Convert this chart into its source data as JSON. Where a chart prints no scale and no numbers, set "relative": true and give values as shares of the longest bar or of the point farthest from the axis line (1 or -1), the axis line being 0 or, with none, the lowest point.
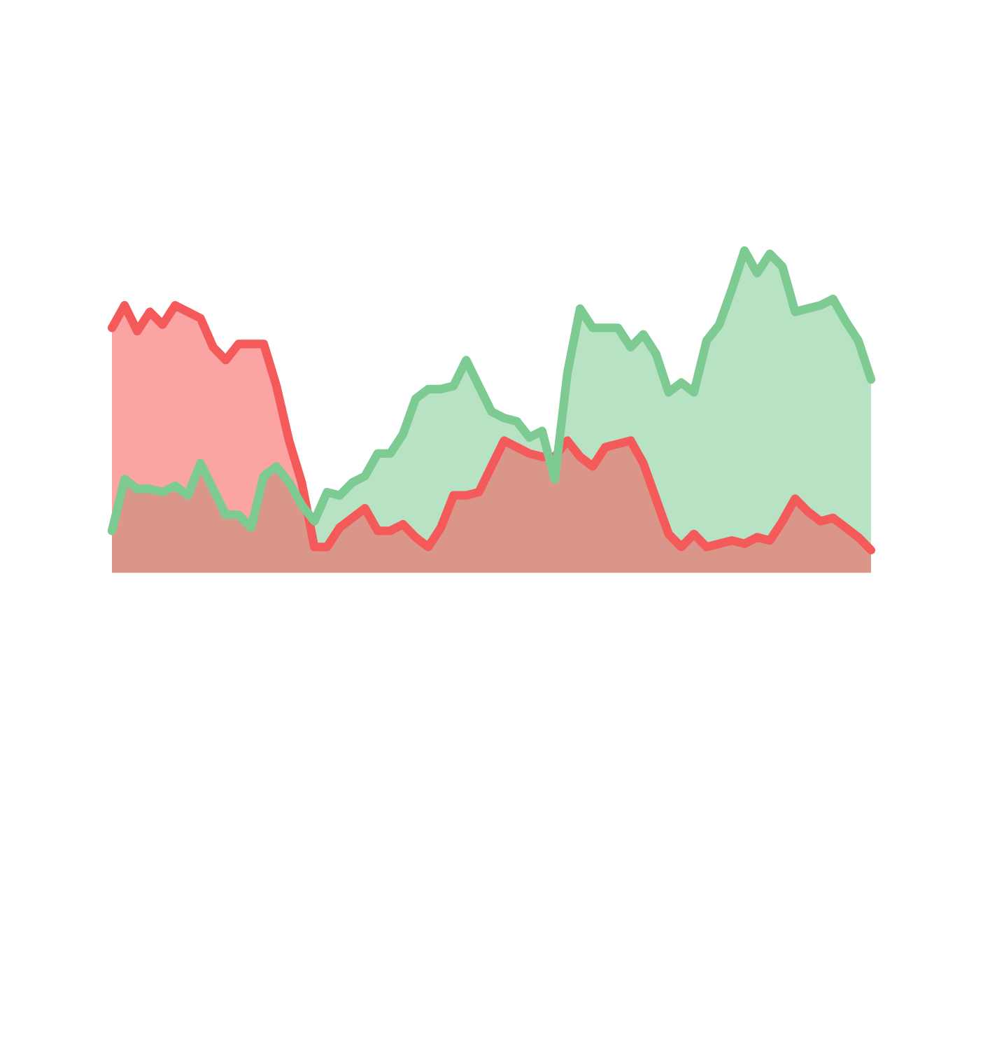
{
  "chart_data": {
    "type": "area",
    "relative": true,
    "categories": [
      null,
      null,
      null,
      null,
      null,
      null,
      null,
      null,
      null,
      null,
      null,
      null,
      null,
      null,
      null,
      null,
      null,
      null,
      null,
      null,
      null,
      null,
      null,
      null,
      null,
      null,
      null,
      null,
      null,
      null,
      null,
      null,
      null,
      null,
      null,
      null,
      null,
      null,
      null,
      null,
      null,
      null,
      null,
      null,
      null,
      null,
      null,
      null,
      null,
      null,
      null,
      null,
      null,
      null,
      null,
      null,
      null,
      null,
      null,
      null,
      null
    ],
    "series": [
      {
        "color": "#f55a5a",
        "values": [
          0.76,
          0.83,
          0.75,
          0.81,
          0.77,
          0.83,
          0.81,
          0.79,
          0.7,
          0.66,
          0.71,
          0.71,
          0.71,
          0.58,
          0.41,
          0.28,
          0.08,
          0.08,
          0.14,
          0.17,
          0.2,
          0.13,
          0.13,
          0.15,
          0.11,
          0.08,
          0.14,
          0.24,
          0.24,
          0.25,
          0.33,
          0.41,
          0.39,
          0.37,
          0.36,
          0.36,
          0.41,
          0.36,
          0.33,
          0.39,
          0.4,
          0.41,
          0.34,
          0.23,
          0.12,
          0.08,
          0.12,
          0.08,
          0.09,
          0.1,
          0.09,
          0.11,
          0.1,
          0.16,
          0.23,
          0.19,
          0.16,
          0.17,
          0.14,
          0.11,
          0.07
        ]
      },
      {
        "color": "#7dcb93",
        "values": [
          0.13,
          0.29,
          0.26,
          0.26,
          0.25,
          0.27,
          0.24,
          0.34,
          0.26,
          0.18,
          0.18,
          0.14,
          0.3,
          0.33,
          0.28,
          0.21,
          0.16,
          0.25,
          0.24,
          0.28,
          0.3,
          0.37,
          0.37,
          0.43,
          0.54,
          0.57,
          0.57,
          0.58,
          0.66,
          0.58,
          0.5,
          0.48,
          0.47,
          0.42,
          0.44,
          0.29,
          0.62,
          0.82,
          0.76,
          0.76,
          0.76,
          0.7,
          0.74,
          0.68,
          0.56,
          0.59,
          0.56,
          0.72,
          0.77,
          0.88,
          1.0,
          0.93,
          0.99,
          0.95,
          0.81,
          0.82,
          0.83,
          0.85,
          0.78,
          0.72,
          0.6
        ]
      }
    ]
  }
}
